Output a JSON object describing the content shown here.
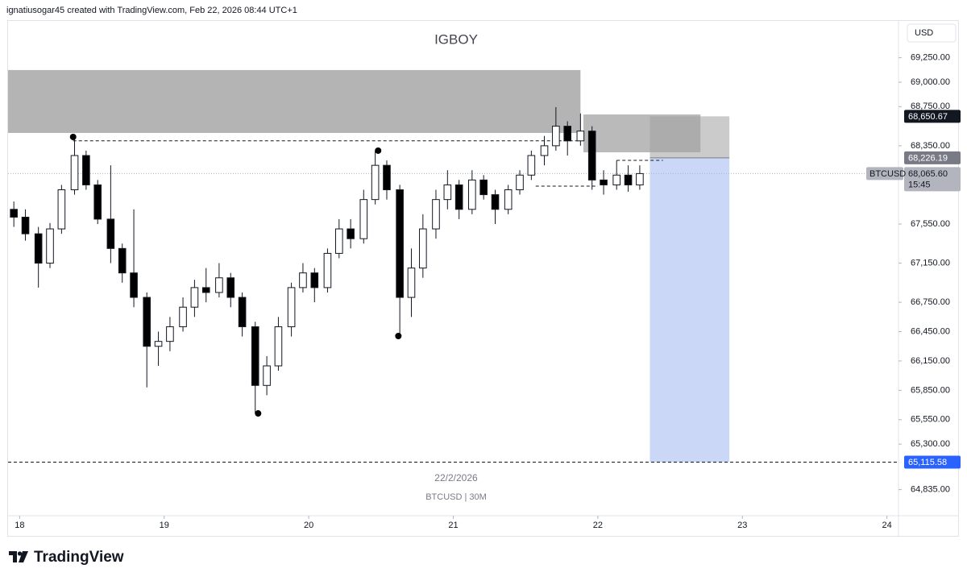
{
  "header": "ignatiusogar45 created with TradingView.com, Feb 22, 2026 08:44 UTC+1",
  "logo": "TradingView",
  "chart_data": {
    "type": "candlestick",
    "title": "IGBOY",
    "date_label": "22/2/2026",
    "subtitle": "BTCUSD | 30M",
    "currency": "USD",
    "xlim": [
      17.92,
      24.08
    ],
    "ylim": [
      64568,
      69634
    ],
    "xticks": [
      18,
      19,
      20,
      21,
      22,
      23,
      24
    ],
    "yticks": [
      {
        "value": 69250,
        "label": "69,250.00"
      },
      {
        "value": 69000,
        "label": "69,000.00"
      },
      {
        "value": 68750,
        "label": "68,750.00"
      },
      {
        "value": 68350,
        "label": "68,350.00"
      },
      {
        "value": 67550,
        "label": "67,550.00"
      },
      {
        "value": 67150,
        "label": "67,150.00"
      },
      {
        "value": 66750,
        "label": "66,750.00"
      },
      {
        "value": 66450,
        "label": "66,450.00"
      },
      {
        "value": 66150,
        "label": "66,150.00"
      },
      {
        "value": 65850,
        "label": "65,850.00"
      },
      {
        "value": 65550,
        "label": "65,550.00"
      },
      {
        "value": 65300,
        "label": "65,300.00"
      },
      {
        "value": 64835,
        "label": "64,835.00"
      }
    ],
    "series": [
      {
        "name": "BTCUSD",
        "up_color": "#ffffff",
        "down_color": "#000000",
        "x": [
          17.96,
          18.04,
          18.13,
          18.21,
          18.29,
          18.38,
          18.46,
          18.54,
          18.63,
          18.71,
          18.79,
          18.88,
          18.96,
          19.04,
          19.13,
          19.21,
          19.29,
          19.38,
          19.46,
          19.54,
          19.63,
          19.71,
          19.79,
          19.88,
          19.96,
          20.04,
          20.13,
          20.21,
          20.29,
          20.38,
          20.46,
          20.54,
          20.63,
          20.71,
          20.79,
          20.88,
          20.96,
          21.04,
          21.13,
          21.21,
          21.29,
          21.38,
          21.46,
          21.54,
          21.63,
          21.71,
          21.79,
          21.88,
          21.96,
          22.04,
          22.13,
          22.21,
          22.29
        ],
        "open": [
          67700,
          67620,
          67450,
          67150,
          67500,
          67900,
          68250,
          67950,
          67600,
          67300,
          67050,
          66800,
          66300,
          66350,
          66500,
          66700,
          66900,
          66850,
          67000,
          66800,
          66500,
          65900,
          66100,
          66500,
          66900,
          67050,
          66900,
          67250,
          67500,
          67400,
          67800,
          68150,
          67900,
          66800,
          67100,
          67500,
          67800,
          67950,
          67700,
          68000,
          67850,
          67700,
          67900,
          68050,
          68250,
          68350,
          68550,
          68400,
          68500,
          68000,
          67950,
          68050,
          67950
        ],
        "high": [
          67780,
          67700,
          67520,
          67560,
          67950,
          68440,
          68300,
          68000,
          68150,
          67350,
          67700,
          66850,
          66450,
          66600,
          66800,
          66980,
          67100,
          67150,
          67050,
          66850,
          66550,
          66200,
          66600,
          66950,
          67150,
          67100,
          67300,
          67600,
          67600,
          67900,
          68300,
          68200,
          67950,
          67300,
          67650,
          67900,
          68100,
          68000,
          68100,
          68050,
          67900,
          67950,
          68100,
          68300,
          68450,
          68745,
          68600,
          68680,
          68550,
          68100,
          68200,
          68150,
          68150
        ],
        "low": [
          67520,
          67380,
          66900,
          67100,
          67450,
          67850,
          67900,
          67550,
          67150,
          66950,
          66700,
          65880,
          66100,
          66250,
          66450,
          66600,
          66750,
          66800,
          66700,
          66400,
          65614,
          65800,
          66050,
          66400,
          66850,
          66750,
          66850,
          67200,
          67300,
          67350,
          67750,
          67800,
          66405,
          66600,
          67000,
          67400,
          67700,
          67600,
          67650,
          67800,
          67550,
          67650,
          67850,
          68000,
          68150,
          68300,
          68250,
          68350,
          67900,
          67850,
          67900,
          67880,
          67900
        ],
        "close": [
          67620,
          67450,
          67150,
          67500,
          67900,
          68250,
          67950,
          67600,
          67300,
          67050,
          66800,
          66300,
          66350,
          66500,
          66700,
          66900,
          66850,
          67000,
          66800,
          66500,
          65900,
          66100,
          66500,
          66900,
          67050,
          66900,
          67250,
          67500,
          67400,
          67800,
          68150,
          67900,
          66800,
          67100,
          67500,
          67800,
          67950,
          67700,
          68000,
          67850,
          67700,
          67900,
          68050,
          68250,
          68350,
          68550,
          68400,
          68500,
          68000,
          67950,
          68050,
          67950,
          68065.6
        ]
      }
    ],
    "last_price": {
      "value": 68065.6,
      "label": "68,065.60"
    },
    "countdown": "15:45",
    "zones": [
      {
        "x": [
          17.92,
          21.88
        ],
        "y": [
          68481,
          69124
        ],
        "color": "#b4b4b4"
      },
      {
        "x": [
          21.9,
          22.71
        ],
        "y": [
          68283,
          68670
        ],
        "color": "#8c8c8c"
      }
    ],
    "levels": [
      {
        "x": [
          18.37,
          21.87
        ],
        "y": 68400
      },
      {
        "x": [
          21.57,
          22.0
        ],
        "y": 67937
      },
      {
        "x": [
          22.13,
          22.45
        ],
        "y": 68201
      }
    ],
    "swing_points": [
      {
        "x": 18.37,
        "y": 68440
      },
      {
        "x": 19.65,
        "y": 65614
      },
      {
        "x": 20.48,
        "y": 68300
      },
      {
        "x": 20.62,
        "y": 66405
      }
    ],
    "position": {
      "x": [
        22.36,
        22.91
      ],
      "entry": {
        "value": 68226.19,
        "label": "68,226.19"
      },
      "stop": {
        "value": 68650.67,
        "label": "68,650.67"
      },
      "target": {
        "value": 65115.58,
        "label": "65,115.58"
      },
      "stop_color": "#a0a0a0",
      "target_color": "#a9bdf0"
    }
  }
}
